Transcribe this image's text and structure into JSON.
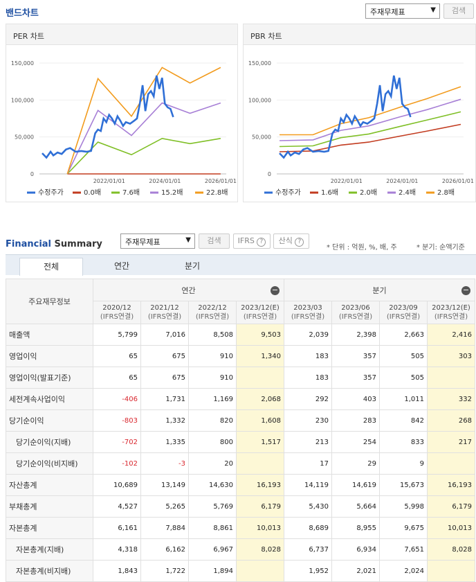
{
  "band": {
    "title": "밴드차트",
    "select_value": "주재무제표",
    "search_label": "검색"
  },
  "per_chart": {
    "title": "PER 차트",
    "legend": [
      "수정주가",
      "0.0배",
      "7.6배",
      "15.2배",
      "22.8배"
    ],
    "colors": [
      "#2f6fd6",
      "#c23b1f",
      "#7fbf26",
      "#a77fd6",
      "#f29b1d"
    ],
    "y_ticks": [
      "150,000",
      "100,000",
      "50,000",
      "0"
    ],
    "x_ticks": [
      "2022/01/01",
      "2024/01/01",
      "2026/01/01"
    ]
  },
  "pbr_chart": {
    "title": "PBR 차트",
    "legend": [
      "수정주가",
      "1.6배",
      "2.0배",
      "2.4배",
      "2.8배"
    ],
    "colors": [
      "#2f6fd6",
      "#c23b1f",
      "#7fbf26",
      "#a77fd6",
      "#f29b1d"
    ],
    "y_ticks": [
      "150,000",
      "100,000",
      "50,000",
      "0"
    ],
    "x_ticks": [
      "2022/01/01",
      "2024/01/01",
      "2026/01/01"
    ]
  },
  "chart_data": [
    {
      "type": "line",
      "title": "PER 차트",
      "xlim": [
        2019.5,
        2026.2
      ],
      "ylim": [
        0,
        150000
      ],
      "series": [
        {
          "name": "수정주가",
          "x": [
            2019.6,
            2019.75,
            2019.9,
            2020.0,
            2020.15,
            2020.3,
            2020.45,
            2020.6,
            2020.8,
            2021.0,
            2021.2,
            2021.35,
            2021.5,
            2021.6,
            2021.7,
            2021.8,
            2021.9,
            2022.0,
            2022.1,
            2022.2,
            2022.3,
            2022.4,
            2022.5,
            2022.6,
            2022.75,
            2022.9,
            2023.0,
            2023.1,
            2023.2,
            2023.3,
            2023.4,
            2023.5,
            2023.6,
            2023.7,
            2023.8,
            2023.9,
            2024.0,
            2024.1,
            2024.2,
            2024.3
          ],
          "y": [
            28000,
            22000,
            30000,
            25000,
            29000,
            27000,
            33000,
            35000,
            30000,
            31000,
            30000,
            31000,
            55000,
            60000,
            58000,
            75000,
            70000,
            80000,
            75000,
            68000,
            78000,
            72000,
            65000,
            70000,
            68000,
            72000,
            75000,
            95000,
            120000,
            85000,
            108000,
            112000,
            105000,
            133000,
            115000,
            130000,
            95000,
            90000,
            88000,
            77000
          ]
        },
        {
          "name": "0.0배",
          "x": [
            2020.5,
            2021.6,
            2022.8,
            2023.9,
            2024.9,
            2026.0
          ],
          "y": [
            0,
            0,
            0,
            0,
            0,
            0
          ]
        },
        {
          "name": "7.6배",
          "x": [
            2020.5,
            2021.6,
            2022.8,
            2023.9,
            2024.9,
            2026.0
          ],
          "y": [
            0,
            43000,
            26000,
            48000,
            41000,
            48000
          ]
        },
        {
          "name": "15.2배",
          "x": [
            2020.5,
            2021.6,
            2022.8,
            2023.9,
            2024.9,
            2026.0
          ],
          "y": [
            0,
            86000,
            52000,
            96000,
            82000,
            96000
          ]
        },
        {
          "name": "22.8배",
          "x": [
            2020.5,
            2021.6,
            2022.8,
            2023.9,
            2024.9,
            2026.0
          ],
          "y": [
            0,
            129000,
            78000,
            144000,
            123000,
            144000
          ]
        }
      ]
    },
    {
      "type": "line",
      "title": "PBR 차트",
      "xlim": [
        2019.5,
        2026.2
      ],
      "ylim": [
        0,
        150000
      ],
      "series": [
        {
          "name": "수정주가",
          "x": [
            2019.6,
            2019.75,
            2019.9,
            2020.0,
            2020.15,
            2020.3,
            2020.45,
            2020.6,
            2020.8,
            2021.0,
            2021.2,
            2021.35,
            2021.5,
            2021.6,
            2021.7,
            2021.8,
            2021.9,
            2022.0,
            2022.1,
            2022.2,
            2022.3,
            2022.4,
            2022.5,
            2022.6,
            2022.75,
            2022.9,
            2023.0,
            2023.1,
            2023.2,
            2023.3,
            2023.4,
            2023.5,
            2023.6,
            2023.7,
            2023.8,
            2023.9,
            2024.0,
            2024.1,
            2024.2,
            2024.3
          ],
          "y": [
            28000,
            22000,
            30000,
            25000,
            29000,
            27000,
            33000,
            35000,
            30000,
            31000,
            30000,
            31000,
            55000,
            60000,
            58000,
            75000,
            70000,
            80000,
            75000,
            68000,
            78000,
            72000,
            65000,
            70000,
            68000,
            72000,
            75000,
            95000,
            120000,
            85000,
            108000,
            112000,
            105000,
            133000,
            115000,
            130000,
            95000,
            90000,
            88000,
            77000
          ]
        },
        {
          "name": "1.6배",
          "x": [
            2019.6,
            2020.8,
            2021.8,
            2022.8,
            2023.9,
            2024.9,
            2026.1
          ],
          "y": [
            30000,
            31000,
            39000,
            43000,
            51000,
            58000,
            67000
          ]
        },
        {
          "name": "2.0배",
          "x": [
            2019.6,
            2020.8,
            2021.8,
            2022.8,
            2023.9,
            2024.9,
            2026.1
          ],
          "y": [
            37000,
            38000,
            49000,
            54000,
            64000,
            73000,
            84000
          ]
        },
        {
          "name": "2.4배",
          "x": [
            2019.6,
            2020.8,
            2021.8,
            2022.8,
            2023.9,
            2024.9,
            2026.1
          ],
          "y": [
            45000,
            46000,
            59000,
            65000,
            77000,
            87000,
            101000
          ]
        },
        {
          "name": "2.8배",
          "x": [
            2019.6,
            2020.8,
            2021.8,
            2022.8,
            2023.9,
            2024.9,
            2026.1
          ],
          "y": [
            53000,
            53000,
            68000,
            76000,
            90000,
            102000,
            118000
          ]
        }
      ]
    }
  ],
  "fs": {
    "title_blue": "Financial",
    "title_rest": " Summary",
    "select_value": "주재무제표",
    "search_label": "검색",
    "ifrs_label": "IFRS",
    "formula_label": "산식",
    "help_glyph": "?",
    "unit_note": "* 단위 : 억원, %, 배, 주",
    "quarter_note": "* 분기: 순액기준",
    "tabs": [
      "전체",
      "연간",
      "분기"
    ],
    "row_header": "주요재무정보",
    "group_annual": "연간",
    "group_quarter": "분기",
    "minus_glyph": "−",
    "columns": [
      {
        "period": "2020/12",
        "basis": "(IFRS연결)"
      },
      {
        "period": "2021/12",
        "basis": "(IFRS연결)"
      },
      {
        "period": "2022/12",
        "basis": "(IFRS연결)"
      },
      {
        "period": "2023/12(E)",
        "basis": "(IFRS연결)"
      },
      {
        "period": "2023/03",
        "basis": "(IFRS연결)"
      },
      {
        "period": "2023/06",
        "basis": "(IFRS연결)"
      },
      {
        "period": "2023/09",
        "basis": "(IFRS연결)"
      },
      {
        "period": "2023/12(E)",
        "basis": "(IFRS연결)"
      }
    ],
    "rows": [
      {
        "label": "매출액",
        "sub": false,
        "values": [
          "5,799",
          "7,016",
          "8,508",
          "9,503",
          "2,039",
          "2,398",
          "2,663",
          "2,416"
        ]
      },
      {
        "label": "영업이익",
        "sub": false,
        "values": [
          "65",
          "675",
          "910",
          "1,340",
          "183",
          "357",
          "505",
          "303"
        ]
      },
      {
        "label": "영업이익(발표기준)",
        "sub": false,
        "values": [
          "65",
          "675",
          "910",
          "",
          "183",
          "357",
          "505",
          ""
        ]
      },
      {
        "label": "세전계속사업이익",
        "sub": false,
        "values": [
          "-406",
          "1,731",
          "1,169",
          "2,068",
          "292",
          "403",
          "1,011",
          "332"
        ]
      },
      {
        "label": "당기순이익",
        "sub": false,
        "values": [
          "-803",
          "1,332",
          "820",
          "1,608",
          "230",
          "283",
          "842",
          "268"
        ]
      },
      {
        "label": "당기순이익(지배)",
        "sub": true,
        "values": [
          "-702",
          "1,335",
          "800",
          "1,517",
          "213",
          "254",
          "833",
          "217"
        ]
      },
      {
        "label": "당기순이익(비지배)",
        "sub": true,
        "values": [
          "-102",
          "-3",
          "20",
          "",
          "17",
          "29",
          "9",
          ""
        ]
      },
      {
        "label": "자산총계",
        "sub": false,
        "values": [
          "10,689",
          "13,149",
          "14,630",
          "16,193",
          "14,119",
          "14,619",
          "15,673",
          "16,193"
        ]
      },
      {
        "label": "부채총계",
        "sub": false,
        "values": [
          "4,527",
          "5,265",
          "5,769",
          "6,179",
          "5,430",
          "5,664",
          "5,998",
          "6,179"
        ]
      },
      {
        "label": "자본총계",
        "sub": false,
        "values": [
          "6,161",
          "7,884",
          "8,861",
          "10,013",
          "8,689",
          "8,955",
          "9,675",
          "10,013"
        ]
      },
      {
        "label": "자본총계(지배)",
        "sub": true,
        "values": [
          "4,318",
          "6,162",
          "6,967",
          "8,028",
          "6,737",
          "6,934",
          "7,651",
          "8,028"
        ]
      },
      {
        "label": "자본총계(비지배)",
        "sub": true,
        "values": [
          "1,843",
          "1,722",
          "1,894",
          "",
          "1,952",
          "2,021",
          "2,024",
          ""
        ]
      }
    ]
  }
}
